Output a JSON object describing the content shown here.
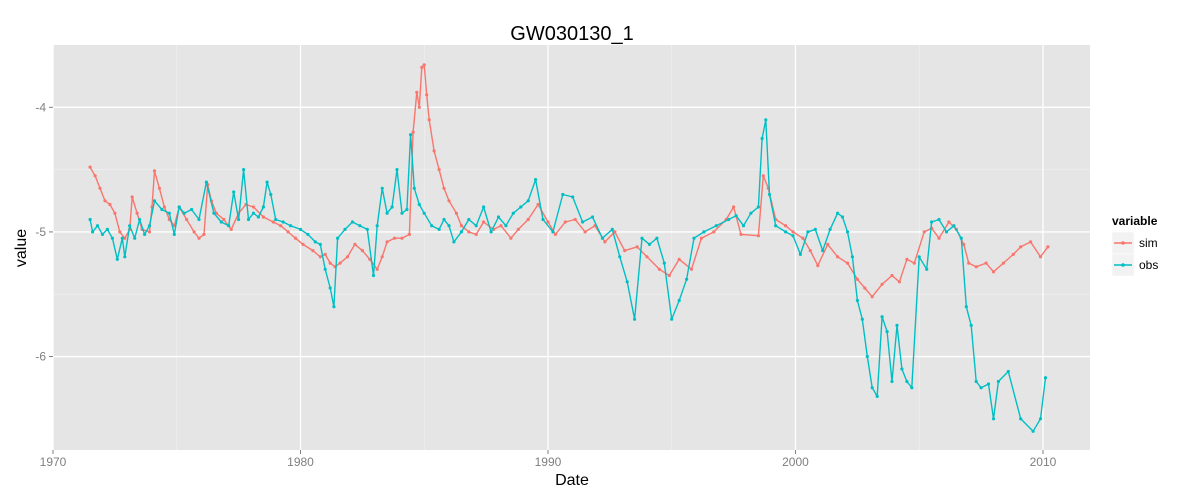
{
  "chart_data": {
    "type": "line",
    "title": "GW030130_1",
    "xlabel": "Date",
    "ylabel": "value",
    "xlim": [
      1970,
      2011.9
    ],
    "ylim": [
      -6.75,
      -3.5
    ],
    "x_ticks": [
      1970,
      1980,
      1990,
      2000,
      2010
    ],
    "y_ticks": [
      -4,
      -5,
      -6
    ],
    "x_tick_labels": [
      "1970",
      "1980",
      "1990",
      "2000",
      "2010"
    ],
    "y_tick_labels": [
      "-4",
      "-5",
      "-6"
    ],
    "grid": true,
    "background": "#e5e5e5",
    "legend": {
      "title": "variable",
      "position": "right"
    },
    "series": [
      {
        "name": "sim",
        "color": "#f8766d",
        "points": [
          [
            1971.5,
            -4.48
          ],
          [
            1971.7,
            -4.55
          ],
          [
            1971.9,
            -4.65
          ],
          [
            1972.1,
            -4.75
          ],
          [
            1972.3,
            -4.78
          ],
          [
            1972.5,
            -4.85
          ],
          [
            1972.7,
            -5.0
          ],
          [
            1972.9,
            -5.05
          ],
          [
            1973.1,
            -4.98
          ],
          [
            1973.2,
            -4.72
          ],
          [
            1973.4,
            -4.85
          ],
          [
            1973.6,
            -4.98
          ],
          [
            1973.9,
            -5.0
          ],
          [
            1974.0,
            -4.8
          ],
          [
            1974.1,
            -4.51
          ],
          [
            1974.3,
            -4.65
          ],
          [
            1974.5,
            -4.8
          ],
          [
            1974.7,
            -4.9
          ],
          [
            1974.9,
            -4.95
          ],
          [
            1975.1,
            -4.8
          ],
          [
            1975.4,
            -4.9
          ],
          [
            1975.7,
            -5.0
          ],
          [
            1975.9,
            -5.05
          ],
          [
            1976.1,
            -5.02
          ],
          [
            1976.25,
            -4.62
          ],
          [
            1976.4,
            -4.75
          ],
          [
            1976.6,
            -4.85
          ],
          [
            1976.9,
            -4.9
          ],
          [
            1977.2,
            -4.98
          ],
          [
            1977.5,
            -4.85
          ],
          [
            1977.8,
            -4.78
          ],
          [
            1978.1,
            -4.8
          ],
          [
            1978.5,
            -4.88
          ],
          [
            1978.9,
            -4.92
          ],
          [
            1979.2,
            -4.95
          ],
          [
            1979.5,
            -5.0
          ],
          [
            1979.8,
            -5.05
          ],
          [
            1980.1,
            -5.1
          ],
          [
            1980.5,
            -5.15
          ],
          [
            1980.8,
            -5.2
          ],
          [
            1981.0,
            -5.18
          ],
          [
            1981.2,
            -5.25
          ],
          [
            1981.4,
            -5.28
          ],
          [
            1981.6,
            -5.25
          ],
          [
            1981.9,
            -5.2
          ],
          [
            1982.2,
            -5.1
          ],
          [
            1982.5,
            -5.15
          ],
          [
            1982.8,
            -5.22
          ],
          [
            1983.1,
            -5.3
          ],
          [
            1983.3,
            -5.2
          ],
          [
            1983.5,
            -5.08
          ],
          [
            1983.8,
            -5.05
          ],
          [
            1984.1,
            -5.05
          ],
          [
            1984.4,
            -5.02
          ],
          [
            1984.55,
            -4.2
          ],
          [
            1984.7,
            -3.88
          ],
          [
            1984.8,
            -4.0
          ],
          [
            1984.9,
            -3.68
          ],
          [
            1985.0,
            -3.66
          ],
          [
            1985.1,
            -3.9
          ],
          [
            1985.2,
            -4.1
          ],
          [
            1985.4,
            -4.35
          ],
          [
            1985.6,
            -4.5
          ],
          [
            1985.8,
            -4.65
          ],
          [
            1986.0,
            -4.75
          ],
          [
            1986.3,
            -4.85
          ],
          [
            1986.5,
            -4.95
          ],
          [
            1986.8,
            -5.0
          ],
          [
            1987.1,
            -5.02
          ],
          [
            1987.4,
            -4.92
          ],
          [
            1987.8,
            -4.98
          ],
          [
            1988.1,
            -4.95
          ],
          [
            1988.5,
            -5.05
          ],
          [
            1988.8,
            -4.98
          ],
          [
            1989.2,
            -4.9
          ],
          [
            1989.6,
            -4.78
          ],
          [
            1990.0,
            -4.92
          ],
          [
            1990.3,
            -5.02
          ],
          [
            1990.7,
            -4.92
          ],
          [
            1991.1,
            -4.9
          ],
          [
            1991.5,
            -5.0
          ],
          [
            1991.9,
            -4.95
          ],
          [
            1992.3,
            -5.08
          ],
          [
            1992.7,
            -5.0
          ],
          [
            1993.1,
            -5.15
          ],
          [
            1993.6,
            -5.12
          ],
          [
            1994.0,
            -5.2
          ],
          [
            1994.5,
            -5.3
          ],
          [
            1994.9,
            -5.35
          ],
          [
            1995.3,
            -5.22
          ],
          [
            1995.8,
            -5.3
          ],
          [
            1996.2,
            -5.05
          ],
          [
            1996.7,
            -5.0
          ],
          [
            1997.2,
            -4.9
          ],
          [
            1997.5,
            -4.8
          ],
          [
            1997.8,
            -5.02
          ],
          [
            1998.5,
            -5.03
          ],
          [
            1998.7,
            -4.55
          ],
          [
            1998.9,
            -4.65
          ],
          [
            1999.2,
            -4.9
          ],
          [
            1999.6,
            -4.95
          ],
          [
            1999.9,
            -5.0
          ],
          [
            2000.3,
            -5.05
          ],
          [
            2000.6,
            -5.15
          ],
          [
            2000.9,
            -5.27
          ],
          [
            2001.3,
            -5.1
          ],
          [
            2001.7,
            -5.2
          ],
          [
            2002.1,
            -5.25
          ],
          [
            2002.5,
            -5.38
          ],
          [
            2002.8,
            -5.45
          ],
          [
            2003.1,
            -5.52
          ],
          [
            2003.5,
            -5.42
          ],
          [
            2003.9,
            -5.35
          ],
          [
            2004.2,
            -5.4
          ],
          [
            2004.5,
            -5.22
          ],
          [
            2004.8,
            -5.25
          ],
          [
            2005.2,
            -5.0
          ],
          [
            2005.5,
            -4.97
          ],
          [
            2005.8,
            -5.05
          ],
          [
            2006.2,
            -4.92
          ],
          [
            2006.5,
            -4.98
          ],
          [
            2006.8,
            -5.1
          ],
          [
            2007.0,
            -5.25
          ],
          [
            2007.3,
            -5.28
          ],
          [
            2007.7,
            -5.25
          ],
          [
            2008.0,
            -5.32
          ],
          [
            2008.4,
            -5.25
          ],
          [
            2008.8,
            -5.18
          ],
          [
            2009.1,
            -5.12
          ],
          [
            2009.5,
            -5.08
          ],
          [
            2009.9,
            -5.2
          ],
          [
            2010.2,
            -5.12
          ]
        ]
      },
      {
        "name": "obs",
        "color": "#00bfc4",
        "points": [
          [
            1971.5,
            -4.9
          ],
          [
            1971.6,
            -5.0
          ],
          [
            1971.8,
            -4.95
          ],
          [
            1972.0,
            -5.02
          ],
          [
            1972.2,
            -4.98
          ],
          [
            1972.4,
            -5.05
          ],
          [
            1972.6,
            -5.22
          ],
          [
            1972.8,
            -5.05
          ],
          [
            1972.9,
            -5.2
          ],
          [
            1973.1,
            -4.95
          ],
          [
            1973.3,
            -5.05
          ],
          [
            1973.5,
            -4.9
          ],
          [
            1973.7,
            -5.02
          ],
          [
            1973.9,
            -4.95
          ],
          [
            1974.1,
            -4.75
          ],
          [
            1974.4,
            -4.82
          ],
          [
            1974.7,
            -4.85
          ],
          [
            1974.9,
            -5.02
          ],
          [
            1975.1,
            -4.8
          ],
          [
            1975.3,
            -4.85
          ],
          [
            1975.6,
            -4.82
          ],
          [
            1975.9,
            -4.9
          ],
          [
            1976.2,
            -4.6
          ],
          [
            1976.5,
            -4.85
          ],
          [
            1976.8,
            -4.92
          ],
          [
            1977.1,
            -4.95
          ],
          [
            1977.3,
            -4.68
          ],
          [
            1977.5,
            -4.9
          ],
          [
            1977.7,
            -4.5
          ],
          [
            1977.9,
            -4.9
          ],
          [
            1978.1,
            -4.85
          ],
          [
            1978.3,
            -4.88
          ],
          [
            1978.5,
            -4.8
          ],
          [
            1978.65,
            -4.6
          ],
          [
            1978.8,
            -4.7
          ],
          [
            1979.0,
            -4.9
          ],
          [
            1979.3,
            -4.92
          ],
          [
            1979.6,
            -4.95
          ],
          [
            1980.0,
            -4.98
          ],
          [
            1980.3,
            -5.02
          ],
          [
            1980.6,
            -5.08
          ],
          [
            1980.8,
            -5.1
          ],
          [
            1981.0,
            -5.3
          ],
          [
            1981.2,
            -5.45
          ],
          [
            1981.35,
            -5.6
          ],
          [
            1981.5,
            -5.05
          ],
          [
            1981.8,
            -4.98
          ],
          [
            1982.1,
            -4.92
          ],
          [
            1982.4,
            -4.95
          ],
          [
            1982.7,
            -4.98
          ],
          [
            1982.95,
            -5.35
          ],
          [
            1983.1,
            -4.95
          ],
          [
            1983.3,
            -4.65
          ],
          [
            1983.5,
            -4.85
          ],
          [
            1983.7,
            -4.8
          ],
          [
            1983.9,
            -4.5
          ],
          [
            1984.1,
            -4.85
          ],
          [
            1984.3,
            -4.82
          ],
          [
            1984.45,
            -4.22
          ],
          [
            1984.6,
            -4.65
          ],
          [
            1984.8,
            -4.78
          ],
          [
            1985.0,
            -4.85
          ],
          [
            1985.3,
            -4.95
          ],
          [
            1985.6,
            -4.98
          ],
          [
            1985.8,
            -4.9
          ],
          [
            1986.0,
            -4.95
          ],
          [
            1986.2,
            -5.08
          ],
          [
            1986.5,
            -5.0
          ],
          [
            1986.8,
            -4.9
          ],
          [
            1987.1,
            -4.95
          ],
          [
            1987.4,
            -4.8
          ],
          [
            1987.7,
            -5.0
          ],
          [
            1988.0,
            -4.88
          ],
          [
            1988.3,
            -4.95
          ],
          [
            1988.6,
            -4.85
          ],
          [
            1988.9,
            -4.8
          ],
          [
            1989.2,
            -4.75
          ],
          [
            1989.5,
            -4.58
          ],
          [
            1989.8,
            -4.9
          ],
          [
            1990.2,
            -5.0
          ],
          [
            1990.6,
            -4.7
          ],
          [
            1991.0,
            -4.72
          ],
          [
            1991.4,
            -4.92
          ],
          [
            1991.8,
            -4.88
          ],
          [
            1992.2,
            -5.05
          ],
          [
            1992.6,
            -4.98
          ],
          [
            1992.9,
            -5.2
          ],
          [
            1993.2,
            -5.4
          ],
          [
            1993.5,
            -5.7
          ],
          [
            1993.8,
            -5.05
          ],
          [
            1994.1,
            -5.1
          ],
          [
            1994.4,
            -5.05
          ],
          [
            1994.7,
            -5.25
          ],
          [
            1995.0,
            -5.7
          ],
          [
            1995.3,
            -5.55
          ],
          [
            1995.6,
            -5.38
          ],
          [
            1995.9,
            -5.05
          ],
          [
            1996.3,
            -5.0
          ],
          [
            1996.8,
            -4.95
          ],
          [
            1997.3,
            -4.9
          ],
          [
            1997.6,
            -4.87
          ],
          [
            1997.9,
            -4.95
          ],
          [
            1998.2,
            -4.85
          ],
          [
            1998.5,
            -4.8
          ],
          [
            1998.65,
            -4.25
          ],
          [
            1998.8,
            -4.1
          ],
          [
            1998.95,
            -4.7
          ],
          [
            1999.2,
            -4.95
          ],
          [
            1999.6,
            -5.0
          ],
          [
            1999.9,
            -5.03
          ],
          [
            2000.2,
            -5.18
          ],
          [
            2000.5,
            -5.0
          ],
          [
            2000.8,
            -4.98
          ],
          [
            2001.1,
            -5.15
          ],
          [
            2001.4,
            -4.98
          ],
          [
            2001.7,
            -4.85
          ],
          [
            2001.9,
            -4.88
          ],
          [
            2002.1,
            -5.0
          ],
          [
            2002.3,
            -5.2
          ],
          [
            2002.5,
            -5.55
          ],
          [
            2002.7,
            -5.7
          ],
          [
            2002.9,
            -6.0
          ],
          [
            2003.1,
            -6.25
          ],
          [
            2003.3,
            -6.32
          ],
          [
            2003.5,
            -5.68
          ],
          [
            2003.7,
            -5.8
          ],
          [
            2003.9,
            -6.2
          ],
          [
            2004.1,
            -5.75
          ],
          [
            2004.3,
            -6.1
          ],
          [
            2004.5,
            -6.2
          ],
          [
            2004.7,
            -6.25
          ],
          [
            2005.0,
            -5.2
          ],
          [
            2005.3,
            -5.3
          ],
          [
            2005.5,
            -4.92
          ],
          [
            2005.8,
            -4.9
          ],
          [
            2006.1,
            -5.0
          ],
          [
            2006.4,
            -4.95
          ],
          [
            2006.7,
            -5.05
          ],
          [
            2006.9,
            -5.6
          ],
          [
            2007.1,
            -5.75
          ],
          [
            2007.3,
            -6.2
          ],
          [
            2007.5,
            -6.25
          ],
          [
            2007.8,
            -6.22
          ],
          [
            2008.0,
            -6.5
          ],
          [
            2008.2,
            -6.2
          ],
          [
            2008.6,
            -6.12
          ],
          [
            2009.1,
            -6.5
          ],
          [
            2009.6,
            -6.6
          ],
          [
            2009.9,
            -6.5
          ],
          [
            2010.1,
            -6.17
          ]
        ]
      }
    ]
  }
}
